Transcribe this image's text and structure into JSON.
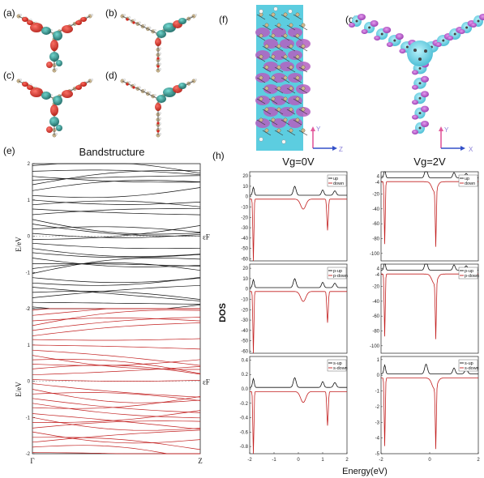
{
  "panels": {
    "a": "(a)",
    "b": "(b)",
    "c": "(c)",
    "d": "(d)",
    "e": "(e)",
    "f": "(f)",
    "g": "(g)",
    "h": "(h)"
  },
  "orbital_panels": {
    "colors": {
      "positive": "#d6261e",
      "negative": "#1e8a88",
      "atom": "#cdb88f",
      "bond": "#555555"
    }
  },
  "panel_f": {
    "axis_y": "Y",
    "axis_z": "Z",
    "colors": {
      "background": "#5ccde0",
      "density": "#b45fc0"
    }
  },
  "panel_g": {
    "axis_y": "Y",
    "axis_x": "X",
    "colors": {
      "cyan": "#5ccde0",
      "purple": "#b45fc0"
    }
  },
  "chart_data": [
    {
      "id": "bandstructure",
      "type": "line",
      "title": "Bandstructure",
      "subpanels": [
        {
          "name": "top",
          "color": "#111111",
          "ylabel": "E/eV",
          "fermi_label": "εF",
          "yticks": [
            "2",
            "1",
            "0",
            "-1",
            "-2"
          ],
          "ylim": [
            -2,
            2
          ]
        },
        {
          "name": "bottom",
          "color": "#c21f1f",
          "ylabel": "E/eV",
          "fermi_label": "εF",
          "yticks": [
            "2",
            "1",
            "0",
            "-1",
            "-2"
          ],
          "ylim": [
            -2,
            2
          ]
        }
      ],
      "xticks": [
        "Γ",
        "Z"
      ]
    },
    {
      "id": "dos",
      "type": "line",
      "ylabel": "DOS",
      "xlabel": "Energy(eV)",
      "columns": [
        "Vg=0V",
        "Vg=2V"
      ],
      "xticks": [
        "-2",
        "-1",
        "0",
        "1",
        "2"
      ],
      "xticks_right": [
        "-2",
        "0",
        "2"
      ],
      "xlim": [
        -2,
        2
      ],
      "colors": {
        "up": "#111111",
        "down": "#c21f1f"
      },
      "rows": [
        {
          "legend": [
            "up",
            "down"
          ],
          "left": {
            "yticks": [
              "20",
              "10",
              "0",
              "-10",
              "-20",
              "-30",
              "-40",
              "-50",
              "-60"
            ],
            "ylim": [
              -62,
              24
            ]
          },
          "right": {
            "yticks": [
              "4",
              "-4",
              "-20",
              "-40",
              "-60",
              "-80",
              "-100"
            ],
            "ylim": [
              -110,
              10
            ]
          }
        },
        {
          "legend": [
            "p-up",
            "p-down"
          ],
          "left": {
            "yticks": [
              "20",
              "10",
              "0",
              "-10",
              "-20",
              "-30",
              "-40",
              "-50",
              "-60"
            ],
            "ylim": [
              -62,
              24
            ]
          },
          "right": {
            "yticks": [
              "4",
              "-4",
              "-20",
              "-40",
              "-60",
              "-80",
              "-100"
            ],
            "ylim": [
              -110,
              10
            ]
          }
        },
        {
          "legend": [
            "s-up",
            "s-down"
          ],
          "left": {
            "yticks": [
              "0.4",
              "0.2",
              "0.0",
              "-0.2",
              "-0.4",
              "-0.6",
              "-0.8"
            ],
            "ylim": [
              -0.9,
              0.45
            ]
          },
          "right": {
            "yticks": [
              "1",
              "0",
              "-1",
              "-2",
              "-3",
              "-4",
              "-5"
            ],
            "ylim": [
              -5,
              1.2
            ]
          }
        }
      ]
    }
  ]
}
